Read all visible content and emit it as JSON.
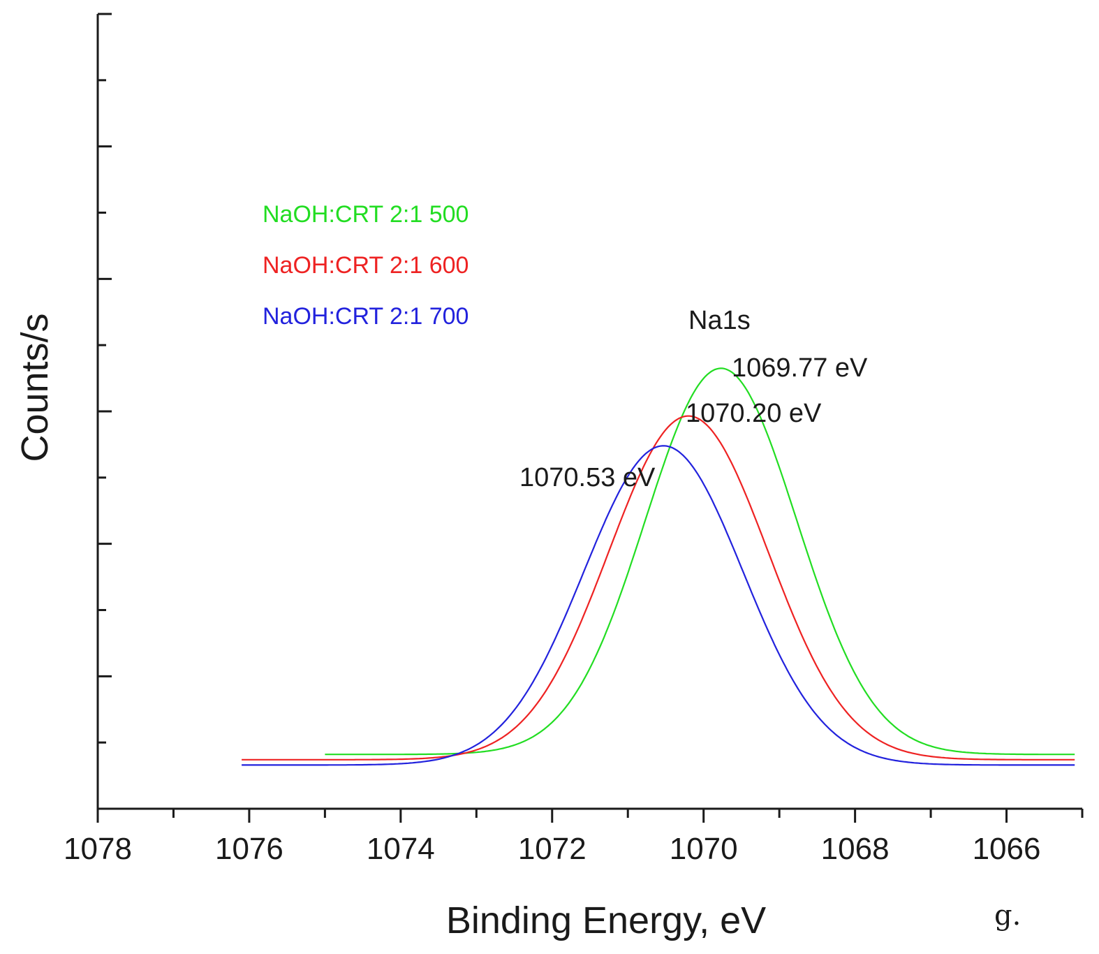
{
  "chart_data": {
    "type": "line",
    "title": "",
    "xlabel": "Binding Energy, eV",
    "ylabel": "Counts/s",
    "xlim": [
      1078,
      1065
    ],
    "ylim": [
      0,
      12
    ],
    "x_ticks": [
      1078,
      1076,
      1074,
      1072,
      1070,
      1068,
      1066
    ],
    "x_tick_labels": [
      "1078",
      "1076",
      "1074",
      "1072",
      "1070",
      "1068",
      "1066"
    ],
    "y_ticks": [
      1,
      2,
      3,
      4,
      5,
      6,
      7,
      8,
      9,
      10,
      11,
      12
    ],
    "grid": false,
    "legend_position": "top-left",
    "series": [
      {
        "name": "NaOH:CRT 2:1 500",
        "color": "#22dd22",
        "x_start": 1075.0,
        "x_end": 1065.1,
        "baseline": 0.82,
        "peak_x": 1069.77,
        "peak_height": 5.83,
        "sigma": 1.0
      },
      {
        "name": "NaOH:CRT 2:1 600",
        "color": "#ee2222",
        "x_start": 1076.1,
        "x_end": 1065.1,
        "baseline": 0.74,
        "peak_x": 1070.2,
        "peak_height": 5.19,
        "sigma": 1.05
      },
      {
        "name": "NaOH:CRT 2:1 700",
        "color": "#2222dd",
        "x_start": 1076.1,
        "x_end": 1065.1,
        "baseline": 0.66,
        "peak_x": 1070.53,
        "peak_height": 4.82,
        "sigma": 1.05
      }
    ],
    "annotations": [
      {
        "text": "Na1s"
      },
      {
        "text": "1069.77 eV"
      },
      {
        "text": "1070.20 eV"
      },
      {
        "text": "1070.53 eV"
      }
    ],
    "panel_label": "g."
  }
}
